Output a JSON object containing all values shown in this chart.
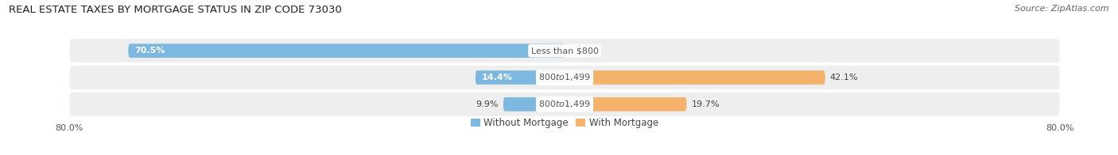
{
  "title": "REAL ESTATE TAXES BY MORTGAGE STATUS IN ZIP CODE 73030",
  "source": "Source: ZipAtlas.com",
  "rows": [
    {
      "label": "Less than $800",
      "without_mortgage": 70.5,
      "with_mortgage": 0.0
    },
    {
      "label": "$800 to $1,499",
      "without_mortgage": 14.4,
      "with_mortgage": 42.1
    },
    {
      "label": "$800 to $1,499",
      "without_mortgage": 9.9,
      "with_mortgage": 19.7
    }
  ],
  "xlim_abs": 80.0,
  "color_without": "#7CB8E0",
  "color_with": "#F4B26A",
  "bar_height": 0.52,
  "bg_row": "#EEEEEE",
  "bg_figure": "#FFFFFF",
  "title_fontsize": 9.5,
  "source_fontsize": 8,
  "label_fontsize": 8,
  "pct_fontsize": 8,
  "tick_fontsize": 8,
  "legend_fontsize": 8.5,
  "center_label_color": "#555555",
  "pct_inside_color": "#FFFFFF",
  "pct_outside_color": "#444444"
}
